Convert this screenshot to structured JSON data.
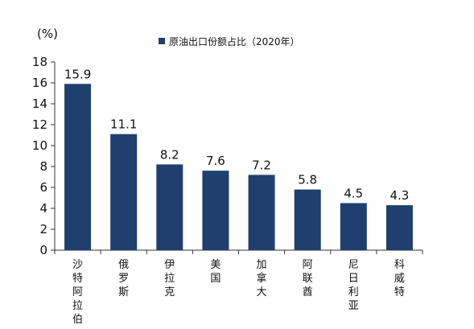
{
  "chart_data": {
    "type": "bar",
    "title": "",
    "unit_label": "(%)",
    "legend": {
      "entries": [
        "原油出口份额占比（2020年）"
      ],
      "placement": "top-center"
    },
    "categories": [
      "沙特阿拉伯",
      "俄罗斯",
      "伊拉克",
      "美国",
      "加拿大",
      "阿联酋",
      "尼日利亚",
      "科威特"
    ],
    "series": [
      {
        "name": "原油出口份额占比（2020年）",
        "values": [
          15.9,
          11.1,
          8.2,
          7.6,
          7.2,
          5.8,
          4.5,
          4.3
        ]
      }
    ],
    "data_labels": [
      "15.9",
      "11.1",
      "8.2",
      "7.6",
      "7.2",
      "5.8",
      "4.5",
      "4.3"
    ],
    "y_ticks": [
      "0",
      "2",
      "4",
      "6",
      "8",
      "10",
      "12",
      "14",
      "16",
      "18"
    ],
    "ylim": [
      0,
      18
    ],
    "grid": false,
    "colors": {
      "bar": "#1f3f6e",
      "axis": "#333333"
    }
  }
}
